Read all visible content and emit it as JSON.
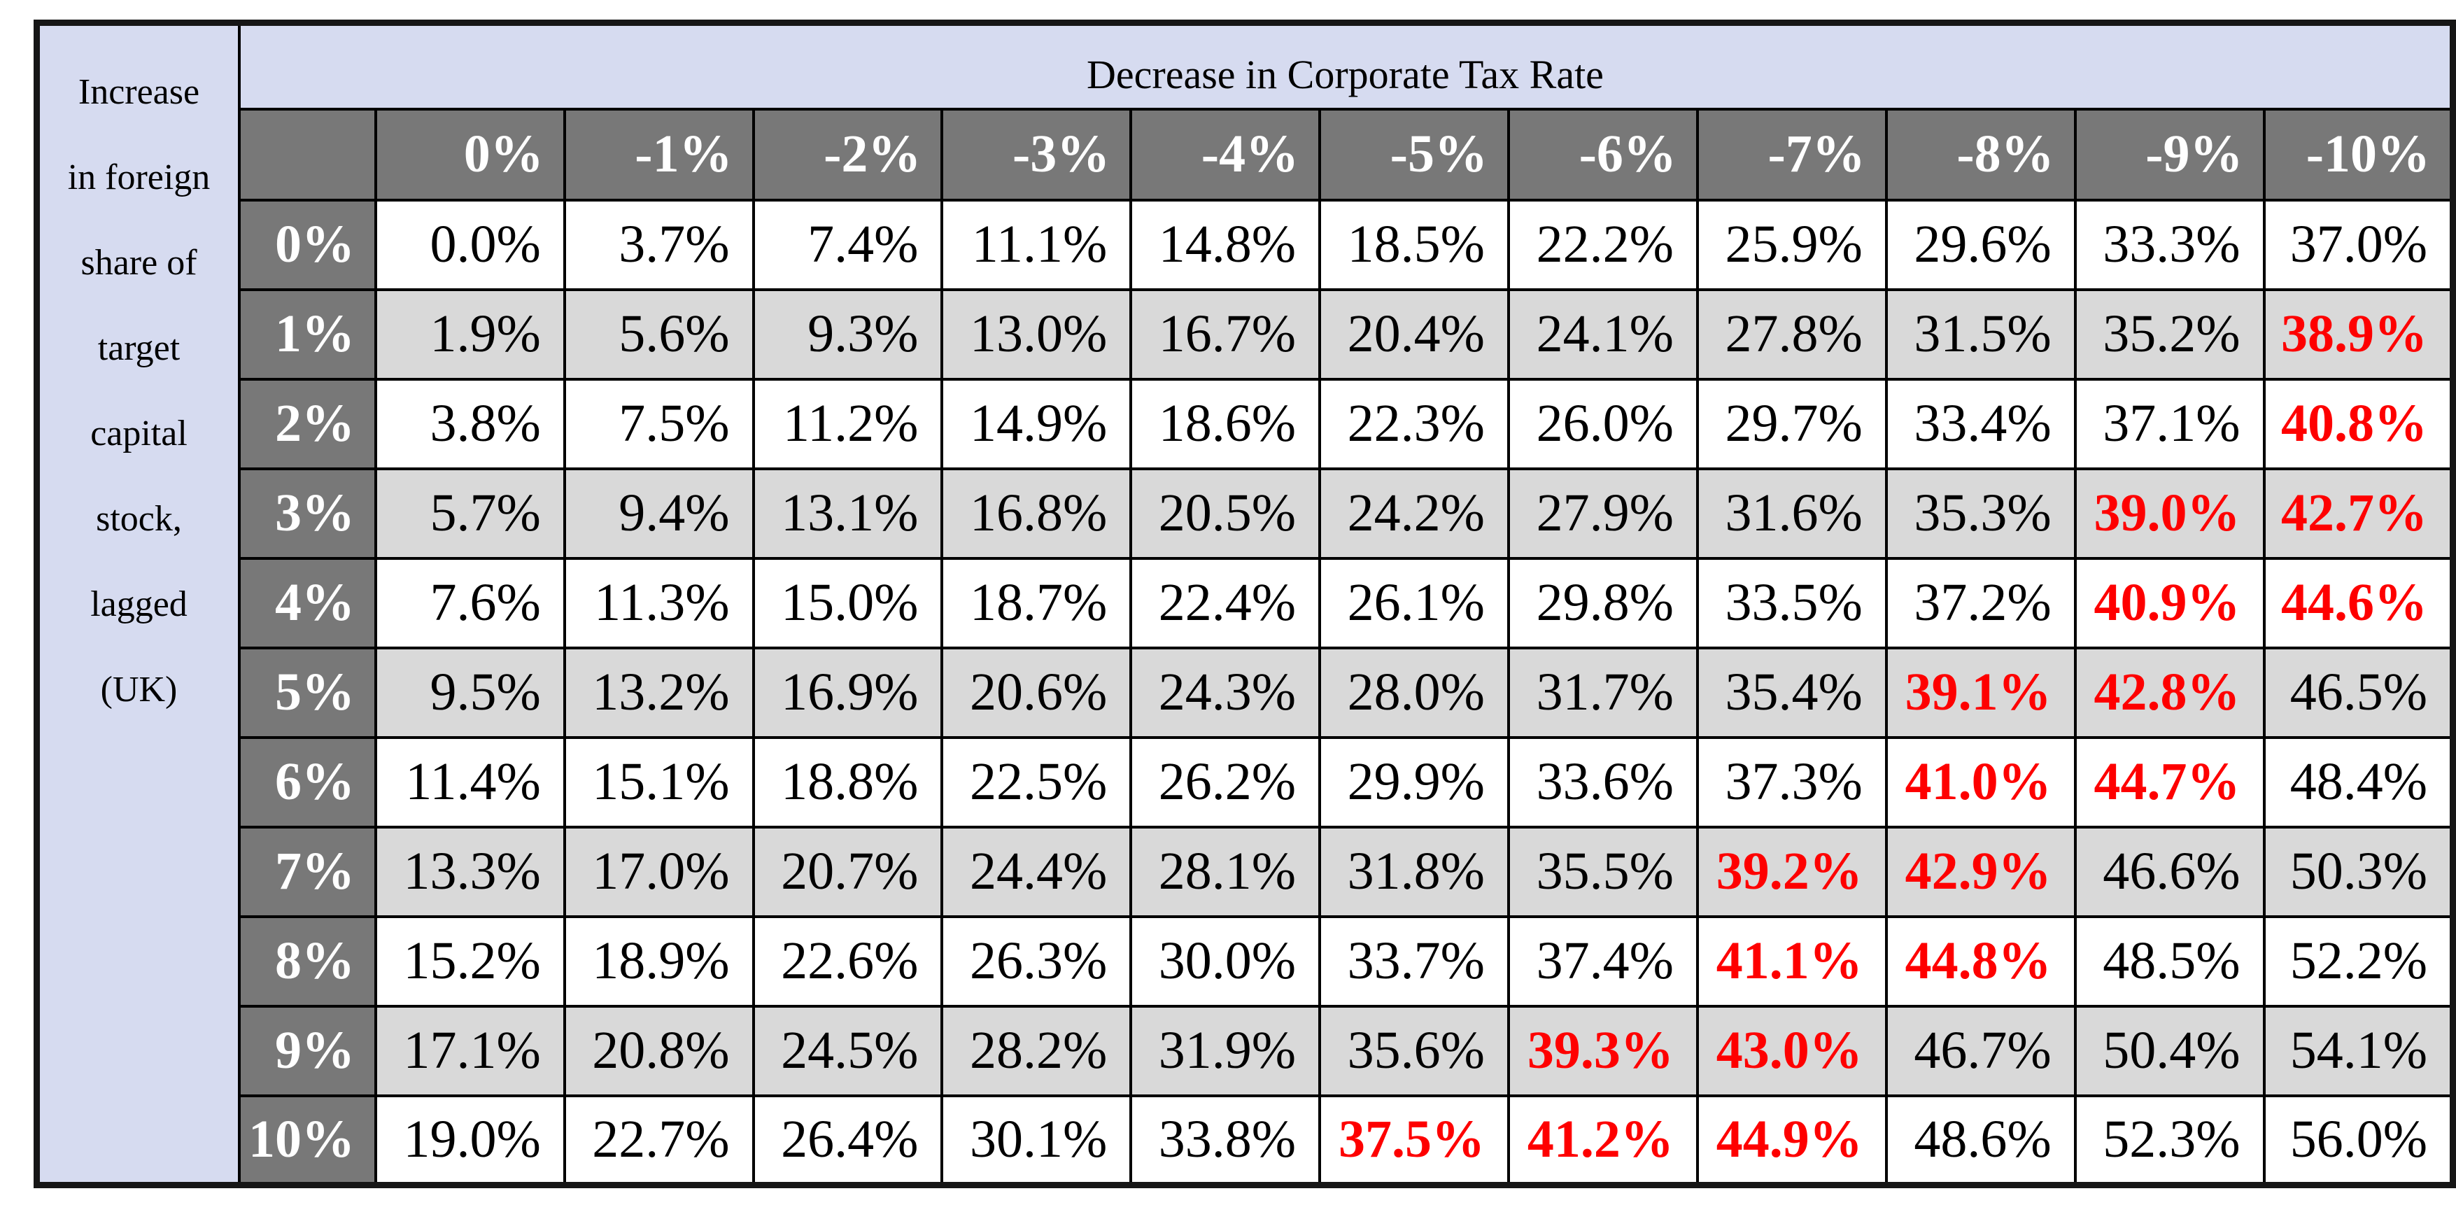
{
  "chart_data": {
    "type": "table",
    "title": "Decrease in Corporate Tax Rate",
    "row_axis_label": "Increase in foreign share of target capital stock, lagged (UK)",
    "row_axis_label_lines": [
      "Increase",
      "in foreign",
      "share of",
      "target",
      "capital",
      "stock,",
      "lagged",
      "(UK)"
    ],
    "column_headers": [
      "",
      "0%",
      "-1%",
      "-2%",
      "-3%",
      "-4%",
      "-5%",
      "-6%",
      "-7%",
      "-8%",
      "-9%",
      "-10%"
    ],
    "row_headers": [
      "0%",
      "1%",
      "2%",
      "3%",
      "4%",
      "5%",
      "6%",
      "7%",
      "8%",
      "9%",
      "10%"
    ],
    "values": [
      [
        "0.0%",
        "3.7%",
        "7.4%",
        "11.1%",
        "14.8%",
        "18.5%",
        "22.2%",
        "25.9%",
        "29.6%",
        "33.3%",
        "37.0%"
      ],
      [
        "1.9%",
        "5.6%",
        "9.3%",
        "13.0%",
        "16.7%",
        "20.4%",
        "24.1%",
        "27.8%",
        "31.5%",
        "35.2%",
        "38.9%"
      ],
      [
        "3.8%",
        "7.5%",
        "11.2%",
        "14.9%",
        "18.6%",
        "22.3%",
        "26.0%",
        "29.7%",
        "33.4%",
        "37.1%",
        "40.8%"
      ],
      [
        "5.7%",
        "9.4%",
        "13.1%",
        "16.8%",
        "20.5%",
        "24.2%",
        "27.9%",
        "31.6%",
        "35.3%",
        "39.0%",
        "42.7%"
      ],
      [
        "7.6%",
        "11.3%",
        "15.0%",
        "18.7%",
        "22.4%",
        "26.1%",
        "29.8%",
        "33.5%",
        "37.2%",
        "40.9%",
        "44.6%"
      ],
      [
        "9.5%",
        "13.2%",
        "16.9%",
        "20.6%",
        "24.3%",
        "28.0%",
        "31.7%",
        "35.4%",
        "39.1%",
        "42.8%",
        "46.5%"
      ],
      [
        "11.4%",
        "15.1%",
        "18.8%",
        "22.5%",
        "26.2%",
        "29.9%",
        "33.6%",
        "37.3%",
        "41.0%",
        "44.7%",
        "48.4%"
      ],
      [
        "13.3%",
        "17.0%",
        "20.7%",
        "24.4%",
        "28.1%",
        "31.8%",
        "35.5%",
        "39.2%",
        "42.9%",
        "46.6%",
        "50.3%"
      ],
      [
        "15.2%",
        "18.9%",
        "22.6%",
        "26.3%",
        "30.0%",
        "33.7%",
        "37.4%",
        "41.1%",
        "44.8%",
        "48.5%",
        "52.2%"
      ],
      [
        "17.1%",
        "20.8%",
        "24.5%",
        "28.2%",
        "31.9%",
        "35.6%",
        "39.3%",
        "43.0%",
        "46.7%",
        "50.4%",
        "54.1%"
      ],
      [
        "19.0%",
        "22.7%",
        "26.4%",
        "30.1%",
        "33.8%",
        "37.5%",
        "41.2%",
        "44.9%",
        "48.6%",
        "52.3%",
        "56.0%"
      ]
    ],
    "red_cells": [
      [
        1,
        10
      ],
      [
        2,
        10
      ],
      [
        3,
        9
      ],
      [
        3,
        10
      ],
      [
        4,
        9
      ],
      [
        4,
        10
      ],
      [
        5,
        8
      ],
      [
        5,
        9
      ],
      [
        6,
        8
      ],
      [
        6,
        9
      ],
      [
        7,
        7
      ],
      [
        7,
        8
      ],
      [
        8,
        7
      ],
      [
        8,
        8
      ],
      [
        9,
        6
      ],
      [
        9,
        7
      ],
      [
        10,
        5
      ],
      [
        10,
        6
      ],
      [
        10,
        7
      ]
    ]
  },
  "colors": {
    "header_bg": "#787878",
    "header_text": "#ffffff",
    "band_row_bg": "#d9d9d9",
    "plain_row_bg": "#ffffff",
    "axis_panel_bg": "#d6dbf0",
    "highlight_text": "#fe0000",
    "grid": "#000000"
  }
}
